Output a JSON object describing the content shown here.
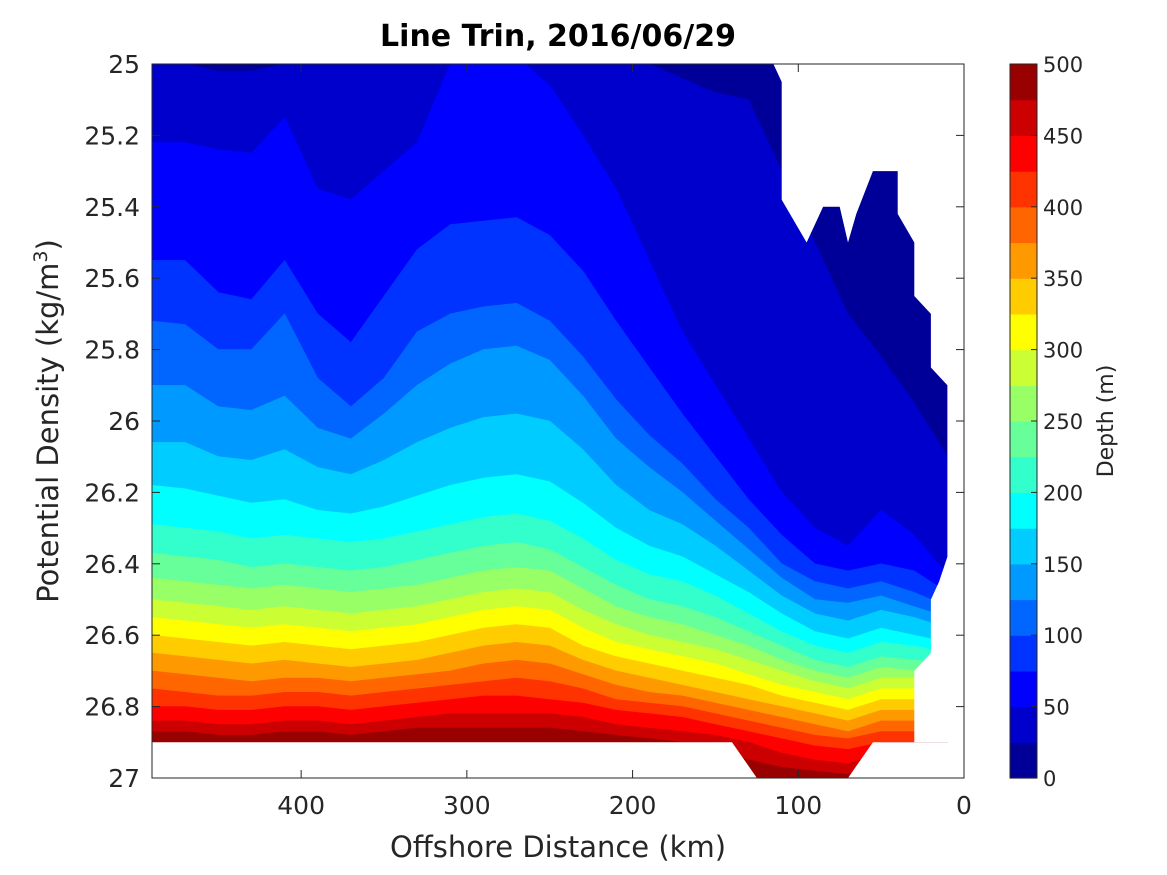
{
  "chart_data": {
    "type": "contour",
    "title": "Line Trin, 2016/06/29",
    "xlabel": "Offshore Distance (km)",
    "ylabel": "Potential Density (kg/m",
    "ylabel_sup": "3",
    "ylabel_close": ")",
    "xlim": [
      490,
      0
    ],
    "ylim": [
      25,
      27
    ],
    "y_reversed": true,
    "x_ticks": [
      400,
      300,
      200,
      100,
      0
    ],
    "x_tick_labels": [
      "400",
      "300",
      "200",
      "100",
      "0"
    ],
    "y_ticks": [
      25,
      25.2,
      25.4,
      25.6,
      25.8,
      26,
      26.2,
      26.4,
      26.6,
      26.8,
      27
    ],
    "y_tick_labels": [
      "25",
      "25.2",
      "25.4",
      "25.6",
      "25.8",
      "26",
      "26.2",
      "26.4",
      "26.6",
      "26.8",
      "27"
    ],
    "colorbar": {
      "label": "Depth (m)",
      "range": [
        0,
        500
      ],
      "ticks": [
        0,
        50,
        100,
        150,
        200,
        250,
        300,
        350,
        400,
        450,
        500
      ],
      "tick_labels": [
        "0",
        "50",
        "100",
        "150",
        "200",
        "250",
        "300",
        "350",
        "400",
        "450",
        "500"
      ],
      "colormap": "jet",
      "levels": 20
    },
    "stations_x": [
      490,
      470,
      450,
      430,
      410,
      390,
      370,
      350,
      330,
      310,
      290,
      270,
      250,
      230,
      210,
      190,
      170,
      150,
      130,
      110,
      90,
      70,
      50,
      30,
      10
    ],
    "contours": [
      {
        "level": 25,
        "y": [
          25.0,
          25.0,
          25.02,
          25.02,
          25.0,
          25.0,
          25.0,
          25.0,
          25.0,
          25.0,
          25.0,
          25.0,
          25.0,
          25.0,
          25.0,
          25.0,
          25.04,
          25.08,
          25.1,
          25.3,
          25.5,
          25.7,
          25.82,
          25.95,
          26.1
        ]
      },
      {
        "level": 50,
        "y": [
          25.22,
          25.22,
          25.24,
          25.25,
          25.15,
          25.35,
          25.38,
          25.3,
          25.22,
          25.0,
          24.95,
          24.98,
          25.06,
          25.2,
          25.35,
          25.55,
          25.75,
          25.9,
          26.05,
          26.2,
          26.3,
          26.35,
          26.25,
          26.32,
          26.43
        ]
      },
      {
        "level": 75,
        "y": [
          25.55,
          25.55,
          25.64,
          25.66,
          25.55,
          25.7,
          25.78,
          25.65,
          25.52,
          25.45,
          25.44,
          25.43,
          25.48,
          25.58,
          25.72,
          25.85,
          25.98,
          26.1,
          26.22,
          26.32,
          26.4,
          26.42,
          26.4,
          26.42,
          26.48
        ]
      },
      {
        "level": 100,
        "y": [
          25.72,
          25.73,
          25.8,
          25.8,
          25.7,
          25.88,
          25.96,
          25.88,
          25.75,
          25.7,
          25.68,
          25.67,
          25.72,
          25.82,
          25.94,
          26.04,
          26.12,
          26.22,
          26.3,
          26.4,
          26.45,
          26.47,
          26.45,
          26.48,
          26.52
        ]
      },
      {
        "level": 125,
        "y": [
          25.9,
          25.9,
          25.96,
          25.97,
          25.93,
          26.02,
          26.05,
          25.98,
          25.9,
          25.84,
          25.8,
          25.79,
          25.83,
          25.93,
          26.05,
          26.13,
          26.2,
          26.28,
          26.36,
          26.44,
          26.5,
          26.51,
          26.49,
          26.52,
          26.55
        ]
      },
      {
        "level": 150,
        "y": [
          26.06,
          26.06,
          26.1,
          26.11,
          26.08,
          26.13,
          26.15,
          26.11,
          26.06,
          26.02,
          25.99,
          25.98,
          26.0,
          26.08,
          26.18,
          26.25,
          26.29,
          26.35,
          26.42,
          26.49,
          26.54,
          26.56,
          26.53,
          26.55,
          26.58
        ]
      },
      {
        "level": 175,
        "y": [
          26.18,
          26.19,
          26.21,
          26.23,
          26.22,
          26.25,
          26.26,
          26.24,
          26.21,
          26.18,
          26.16,
          26.15,
          26.17,
          26.23,
          26.3,
          26.35,
          26.38,
          26.43,
          26.48,
          26.54,
          26.59,
          26.61,
          26.58,
          26.6,
          26.62
        ]
      },
      {
        "level": 200,
        "y": [
          26.29,
          26.3,
          26.31,
          26.33,
          26.32,
          26.33,
          26.34,
          26.33,
          26.31,
          26.29,
          26.27,
          26.26,
          26.28,
          26.33,
          26.39,
          26.43,
          26.45,
          26.49,
          26.54,
          26.59,
          26.63,
          26.65,
          26.62,
          26.63,
          26.65
        ]
      },
      {
        "level": 225,
        "y": [
          26.37,
          26.38,
          26.39,
          26.41,
          26.4,
          26.41,
          26.42,
          26.41,
          26.39,
          26.37,
          26.35,
          26.34,
          26.36,
          26.41,
          26.46,
          26.5,
          26.52,
          26.55,
          26.59,
          26.63,
          26.67,
          26.69,
          26.66,
          26.67,
          26.68
        ]
      },
      {
        "level": 250,
        "y": [
          26.44,
          26.45,
          26.46,
          26.47,
          26.46,
          26.47,
          26.48,
          26.47,
          26.46,
          26.44,
          26.42,
          26.41,
          26.42,
          26.47,
          26.52,
          26.55,
          26.57,
          26.6,
          26.63,
          26.67,
          26.7,
          26.72,
          26.69,
          26.7,
          26.71
        ]
      },
      {
        "level": 275,
        "y": [
          26.5,
          26.51,
          26.52,
          26.53,
          26.52,
          26.53,
          26.54,
          26.53,
          26.52,
          26.5,
          26.48,
          26.47,
          26.48,
          26.53,
          26.57,
          26.6,
          26.62,
          26.64,
          26.67,
          26.7,
          26.73,
          26.75,
          26.72,
          26.72,
          26.74
        ]
      },
      {
        "level": 300,
        "y": [
          26.55,
          26.56,
          26.57,
          26.58,
          26.57,
          26.58,
          26.59,
          26.58,
          26.57,
          26.55,
          26.53,
          26.52,
          26.53,
          26.58,
          26.62,
          26.64,
          26.66,
          26.68,
          26.71,
          26.74,
          26.76,
          26.78,
          26.75,
          26.75,
          26.76
        ]
      },
      {
        "level": 325,
        "y": [
          26.6,
          26.61,
          26.62,
          26.63,
          26.62,
          26.63,
          26.64,
          26.63,
          26.62,
          26.6,
          26.58,
          26.57,
          26.58,
          26.63,
          26.66,
          26.68,
          26.7,
          26.72,
          26.74,
          26.77,
          26.79,
          26.81,
          26.78,
          26.78,
          26.79
        ]
      },
      {
        "level": 350,
        "y": [
          26.65,
          26.66,
          26.67,
          26.68,
          26.67,
          26.68,
          26.69,
          26.68,
          26.67,
          26.65,
          26.63,
          26.62,
          26.63,
          26.67,
          26.7,
          26.72,
          26.74,
          26.76,
          26.78,
          26.8,
          26.82,
          26.84,
          26.81,
          26.81,
          26.82
        ]
      },
      {
        "level": 375,
        "y": [
          26.7,
          26.71,
          26.72,
          26.73,
          26.72,
          26.72,
          26.73,
          26.72,
          26.71,
          26.7,
          26.68,
          26.67,
          26.68,
          26.71,
          26.74,
          26.76,
          26.77,
          26.79,
          26.81,
          26.83,
          26.85,
          26.87,
          26.84,
          26.84,
          26.85
        ]
      },
      {
        "level": 400,
        "y": [
          26.75,
          26.76,
          26.77,
          26.77,
          26.76,
          26.76,
          26.77,
          26.76,
          26.75,
          26.74,
          26.73,
          26.72,
          26.73,
          26.75,
          26.78,
          26.79,
          26.8,
          26.82,
          26.84,
          26.86,
          26.88,
          26.89,
          26.87,
          26.87,
          26.88
        ]
      },
      {
        "level": 425,
        "y": [
          26.8,
          26.8,
          26.81,
          26.81,
          26.8,
          26.8,
          26.81,
          26.8,
          26.79,
          26.78,
          26.77,
          26.77,
          26.78,
          26.79,
          26.81,
          26.82,
          26.83,
          26.85,
          26.87,
          26.89,
          26.91,
          26.92,
          26.9,
          26.9,
          26.9
        ]
      },
      {
        "level": 450,
        "y": [
          26.84,
          26.84,
          26.85,
          26.85,
          26.84,
          26.84,
          26.85,
          26.84,
          26.83,
          26.82,
          26.82,
          26.82,
          26.82,
          26.83,
          26.85,
          26.86,
          26.87,
          26.88,
          26.9,
          26.93,
          26.95,
          26.96,
          26.93,
          26.93,
          26.93
        ]
      },
      {
        "level": 475,
        "y": [
          26.87,
          26.87,
          26.88,
          26.88,
          26.87,
          26.87,
          26.88,
          26.87,
          26.86,
          26.86,
          26.86,
          26.86,
          26.86,
          26.87,
          26.88,
          26.89,
          26.9,
          26.92,
          26.95,
          26.97,
          26.98,
          26.99,
          26.96,
          26.96,
          26.96
        ]
      }
    ],
    "data_bottom": [
      26.9,
      26.9,
      26.9,
      26.9,
      26.9,
      26.9,
      26.9,
      26.9,
      26.9,
      26.9,
      26.9,
      26.9,
      26.9,
      26.9,
      26.9,
      26.9,
      26.9,
      26.9,
      27.0,
      27.0,
      27.0,
      27.0,
      26.9,
      26.9,
      26.9
    ],
    "blank_regions": [
      {
        "name": "top-right-gap",
        "polygon": [
          [
            125,
            25.0
          ],
          [
            490,
            25.0
          ],
          [
            490,
            25.0
          ],
          [
            115,
            25.0
          ],
          [
            110,
            25.05
          ],
          [
            120,
            25.05
          ]
        ]
      }
    ],
    "upper_boundary": [
      [
        0,
        25.0
      ],
      [
        115,
        25.0
      ],
      [
        110,
        25.05
      ],
      [
        110,
        25.38
      ],
      [
        95,
        25.5
      ],
      [
        85,
        25.4
      ],
      [
        75,
        25.4
      ],
      [
        70,
        25.5
      ],
      [
        65,
        25.42
      ],
      [
        55,
        25.3
      ],
      [
        40,
        25.3
      ],
      [
        40,
        25.42
      ],
      [
        30,
        25.5
      ],
      [
        30,
        25.65
      ],
      [
        20,
        25.7
      ],
      [
        20,
        25.85
      ],
      [
        10,
        25.9
      ],
      [
        10,
        26.0
      ]
    ],
    "right_boundary": [
      [
        10,
        26.0
      ],
      [
        10,
        26.38
      ],
      [
        15,
        26.45
      ],
      [
        20,
        26.5
      ],
      [
        20,
        26.65
      ],
      [
        30,
        26.7
      ],
      [
        30,
        26.9
      ]
    ],
    "bottom_boundary": [
      [
        490,
        26.9
      ],
      [
        140,
        26.9
      ],
      [
        125,
        27.0
      ],
      [
        70,
        27.0
      ],
      [
        55,
        26.9
      ],
      [
        30,
        26.9
      ]
    ]
  }
}
